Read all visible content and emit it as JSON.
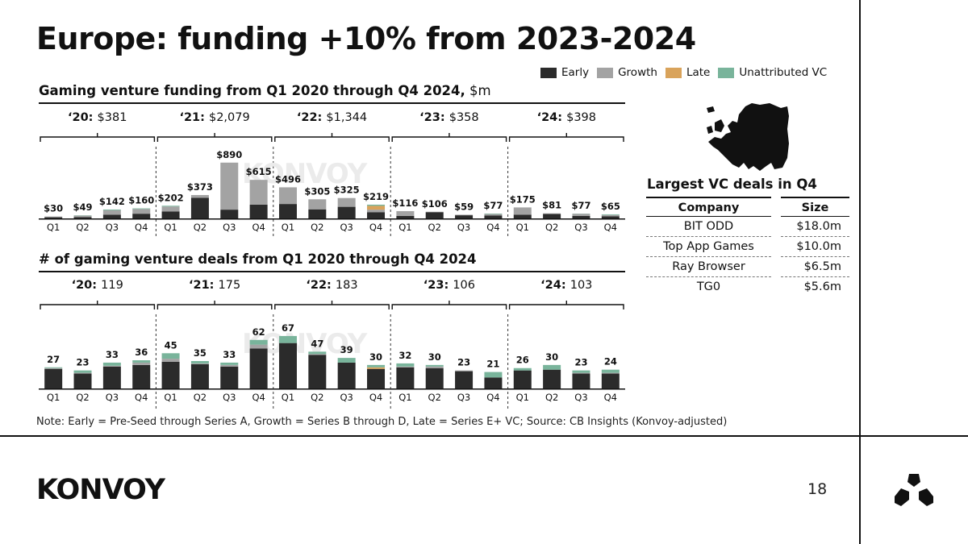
{
  "title": "Europe: funding +10% from 2023-2024",
  "legend": {
    "items": [
      {
        "label": "Early",
        "color": "#2b2b2b"
      },
      {
        "label": "Growth",
        "color": "#a3a3a3"
      },
      {
        "label": "Late",
        "color": "#d9a35b"
      },
      {
        "label": "Unattributed VC",
        "color": "#79b49b"
      }
    ]
  },
  "watermark": "KONVOY",
  "chart_data": [
    {
      "type": "bar",
      "stacked": true,
      "title": "Gaming venture funding from Q1 2020 through Q4 2024,",
      "unit": " $m",
      "categories": [
        "Q1",
        "Q2",
        "Q3",
        "Q4",
        "Q1",
        "Q2",
        "Q3",
        "Q4",
        "Q1",
        "Q2",
        "Q3",
        "Q4",
        "Q1",
        "Q2",
        "Q3",
        "Q4",
        "Q1",
        "Q2",
        "Q3",
        "Q4"
      ],
      "totals_labels": [
        "$30",
        "$49",
        "$142",
        "$160",
        "$202",
        "$373",
        "$890",
        "$615",
        "$496",
        "$305",
        "$325",
        "$219",
        "$116",
        "$106",
        "$59",
        "$77",
        "$175",
        "$81",
        "$77",
        "$65"
      ],
      "series": [
        {
          "name": "Early",
          "values": [
            18,
            22,
            60,
            75,
            110,
            330,
            140,
            220,
            230,
            145,
            185,
            100,
            40,
            100,
            50,
            45,
            60,
            70,
            40,
            35
          ]
        },
        {
          "name": "Growth",
          "values": [
            12,
            22,
            70,
            75,
            80,
            43,
            750,
            395,
            266,
            160,
            140,
            40,
            76,
            6,
            9,
            25,
            115,
            11,
            34,
            20
          ]
        },
        {
          "name": "Late",
          "values": [
            0,
            0,
            0,
            0,
            0,
            0,
            0,
            0,
            0,
            0,
            0,
            60,
            0,
            0,
            0,
            0,
            0,
            0,
            0,
            0
          ]
        },
        {
          "name": "Unattributed VC",
          "values": [
            0,
            5,
            12,
            10,
            12,
            0,
            0,
            0,
            0,
            0,
            0,
            19,
            0,
            0,
            0,
            7,
            0,
            0,
            3,
            10
          ]
        }
      ],
      "years": [
        {
          "year": "‘20:",
          "total": "$381"
        },
        {
          "year": "‘21:",
          "total": "$2,079"
        },
        {
          "year": "‘22:",
          "total": "$1,344"
        },
        {
          "year": "‘23:",
          "total": "$358"
        },
        {
          "year": "‘24:",
          "total": "$398"
        }
      ],
      "ylim": [
        0,
        900
      ]
    },
    {
      "type": "bar",
      "stacked": true,
      "title": "# of gaming venture deals from Q1 2020 through Q4 2024",
      "unit": "",
      "categories": [
        "Q1",
        "Q2",
        "Q3",
        "Q4",
        "Q1",
        "Q2",
        "Q3",
        "Q4",
        "Q1",
        "Q2",
        "Q3",
        "Q4",
        "Q1",
        "Q2",
        "Q3",
        "Q4",
        "Q1",
        "Q2",
        "Q3",
        "Q4"
      ],
      "totals_labels": [
        "27",
        "23",
        "33",
        "36",
        "45",
        "35",
        "33",
        "62",
        "67",
        "47",
        "39",
        "30",
        "32",
        "30",
        "23",
        "21",
        "26",
        "30",
        "23",
        "24"
      ],
      "series": [
        {
          "name": "Early",
          "values": [
            25,
            19,
            28,
            30,
            34,
            31,
            28,
            51,
            58,
            43,
            33,
            25,
            27,
            26,
            22,
            14,
            23,
            24,
            19,
            19
          ]
        },
        {
          "name": "Growth",
          "values": [
            1,
            1,
            1,
            3,
            4,
            1,
            2,
            5,
            0,
            1,
            0,
            0,
            1,
            2,
            1,
            0,
            0,
            0,
            1,
            1
          ]
        },
        {
          "name": "Late",
          "values": [
            0,
            0,
            0,
            0,
            0,
            0,
            0,
            0,
            0,
            0,
            0,
            2,
            0,
            0,
            0,
            0,
            0,
            0,
            0,
            0
          ]
        },
        {
          "name": "Unattributed VC",
          "values": [
            1,
            3,
            4,
            3,
            7,
            3,
            3,
            6,
            9,
            3,
            6,
            3,
            4,
            2,
            0,
            7,
            3,
            6,
            3,
            4
          ]
        }
      ],
      "years": [
        {
          "year": "‘20:",
          "total": "119"
        },
        {
          "year": "‘21:",
          "total": "175"
        },
        {
          "year": "‘22:",
          "total": "183"
        },
        {
          "year": "‘23:",
          "total": "106"
        },
        {
          "year": "‘24:",
          "total": "103"
        }
      ],
      "ylim": [
        0,
        70
      ]
    }
  ],
  "deals": {
    "title": "Largest VC deals in Q4",
    "headers": {
      "company": "Company",
      "size": "Size"
    },
    "rows": [
      {
        "company": "BIT ODD",
        "size": "$18.0m"
      },
      {
        "company": "Top App Games",
        "size": "$10.0m"
      },
      {
        "company": "Ray Browser",
        "size": "$6.5m"
      },
      {
        "company": "TG0",
        "size": "$5.6m"
      }
    ]
  },
  "note": "Note: Early = Pre-Seed through Series A, Growth = Series B through D, Late = Series E+ VC; Source: CB Insights (Konvoy-adjusted)",
  "footer": {
    "brand": "KONVOY",
    "page_number": "18"
  }
}
